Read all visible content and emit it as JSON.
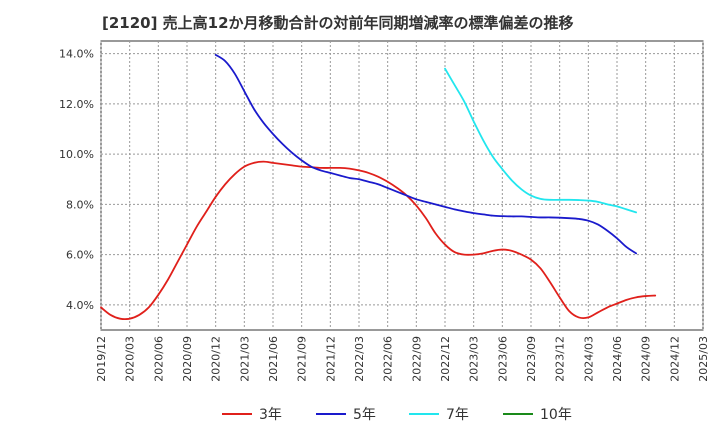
{
  "chart_data": {
    "type": "line",
    "title": "[2120]  売上高12か月移動合計の対前年同期増減率の標準偏差の推移",
    "xlabel": "",
    "ylabel": "",
    "x_ticks": [
      "2019/12",
      "2020/03",
      "2020/06",
      "2020/09",
      "2020/12",
      "2021/03",
      "2021/06",
      "2021/09",
      "2021/12",
      "2022/03",
      "2022/06",
      "2022/09",
      "2022/12",
      "2023/03",
      "2023/06",
      "2023/09",
      "2023/12",
      "2024/03",
      "2024/06",
      "2024/09",
      "2024/12",
      "2025/03"
    ],
    "y_ticks": [
      "4.0%",
      "6.0%",
      "8.0%",
      "10.0%",
      "12.0%",
      "14.0%"
    ],
    "ylim": [
      3.0,
      14.5
    ],
    "grid": true,
    "legend_position": "bottom",
    "series": [
      {
        "name": "3年",
        "color": "#e0201b",
        "points": [
          [
            "2019/12",
            3.9
          ],
          [
            "2020/01",
            3.6
          ],
          [
            "2020/02",
            3.45
          ],
          [
            "2020/03",
            3.45
          ],
          [
            "2020/04",
            3.6
          ],
          [
            "2020/05",
            3.9
          ],
          [
            "2020/06",
            4.4
          ],
          [
            "2020/07",
            5.0
          ],
          [
            "2020/08",
            5.7
          ],
          [
            "2020/09",
            6.4
          ],
          [
            "2020/10",
            7.1
          ],
          [
            "2020/11",
            7.7
          ],
          [
            "2020/12",
            8.3
          ],
          [
            "2021/01",
            8.8
          ],
          [
            "2021/02",
            9.2
          ],
          [
            "2021/03",
            9.5
          ],
          [
            "2021/04",
            9.65
          ],
          [
            "2021/05",
            9.7
          ],
          [
            "2021/06",
            9.65
          ],
          [
            "2021/07",
            9.6
          ],
          [
            "2021/08",
            9.55
          ],
          [
            "2021/09",
            9.5
          ],
          [
            "2021/10",
            9.48
          ],
          [
            "2021/11",
            9.45
          ],
          [
            "2021/12",
            9.45
          ],
          [
            "2022/01",
            9.45
          ],
          [
            "2022/02",
            9.42
          ],
          [
            "2022/03",
            9.35
          ],
          [
            "2022/04",
            9.25
          ],
          [
            "2022/05",
            9.1
          ],
          [
            "2022/06",
            8.9
          ],
          [
            "2022/07",
            8.65
          ],
          [
            "2022/08",
            8.35
          ],
          [
            "2022/09",
            7.95
          ],
          [
            "2022/10",
            7.45
          ],
          [
            "2022/11",
            6.85
          ],
          [
            "2022/12",
            6.4
          ],
          [
            "2023/01",
            6.1
          ],
          [
            "2023/02",
            6.0
          ],
          [
            "2023/03",
            6.0
          ],
          [
            "2023/04",
            6.05
          ],
          [
            "2023/05",
            6.15
          ],
          [
            "2023/06",
            6.2
          ],
          [
            "2023/07",
            6.15
          ],
          [
            "2023/08",
            6.0
          ],
          [
            "2023/09",
            5.8
          ],
          [
            "2023/10",
            5.45
          ],
          [
            "2023/11",
            4.9
          ],
          [
            "2023/12",
            4.3
          ],
          [
            "2024/01",
            3.75
          ],
          [
            "2024/02",
            3.5
          ],
          [
            "2024/03",
            3.5
          ],
          [
            "2024/04",
            3.7
          ],
          [
            "2024/05",
            3.9
          ],
          [
            "2024/06",
            4.05
          ],
          [
            "2024/07",
            4.2
          ],
          [
            "2024/08",
            4.3
          ],
          [
            "2024/09",
            4.35
          ],
          [
            "2024/10",
            4.37
          ]
        ]
      },
      {
        "name": "5年",
        "color": "#1a1acc",
        "points": [
          [
            "2020/12",
            13.95
          ],
          [
            "2021/01",
            13.7
          ],
          [
            "2021/02",
            13.2
          ],
          [
            "2021/03",
            12.5
          ],
          [
            "2021/04",
            11.8
          ],
          [
            "2021/05",
            11.25
          ],
          [
            "2021/06",
            10.8
          ],
          [
            "2021/07",
            10.4
          ],
          [
            "2021/08",
            10.05
          ],
          [
            "2021/09",
            9.75
          ],
          [
            "2021/10",
            9.5
          ],
          [
            "2021/11",
            9.35
          ],
          [
            "2021/12",
            9.25
          ],
          [
            "2022/01",
            9.15
          ],
          [
            "2022/02",
            9.05
          ],
          [
            "2022/03",
            9.0
          ],
          [
            "2022/04",
            8.9
          ],
          [
            "2022/05",
            8.8
          ],
          [
            "2022/06",
            8.65
          ],
          [
            "2022/07",
            8.5
          ],
          [
            "2022/08",
            8.35
          ],
          [
            "2022/09",
            8.2
          ],
          [
            "2022/10",
            8.1
          ],
          [
            "2022/11",
            8.0
          ],
          [
            "2022/12",
            7.9
          ],
          [
            "2023/01",
            7.8
          ],
          [
            "2023/02",
            7.72
          ],
          [
            "2023/03",
            7.65
          ],
          [
            "2023/04",
            7.6
          ],
          [
            "2023/05",
            7.55
          ],
          [
            "2023/06",
            7.53
          ],
          [
            "2023/07",
            7.52
          ],
          [
            "2023/08",
            7.52
          ],
          [
            "2023/09",
            7.5
          ],
          [
            "2023/10",
            7.48
          ],
          [
            "2023/11",
            7.48
          ],
          [
            "2023/12",
            7.47
          ],
          [
            "2024/01",
            7.45
          ],
          [
            "2024/02",
            7.42
          ],
          [
            "2024/03",
            7.35
          ],
          [
            "2024/04",
            7.2
          ],
          [
            "2024/05",
            6.95
          ],
          [
            "2024/06",
            6.65
          ],
          [
            "2024/07",
            6.3
          ],
          [
            "2024/08",
            6.05
          ]
        ]
      },
      {
        "name": "7年",
        "color": "#22e6ee",
        "points": [
          [
            "2022/12",
            13.4
          ],
          [
            "2023/01",
            12.75
          ],
          [
            "2023/02",
            12.1
          ],
          [
            "2023/03",
            11.3
          ],
          [
            "2023/04",
            10.55
          ],
          [
            "2023/05",
            9.9
          ],
          [
            "2023/06",
            9.4
          ],
          [
            "2023/07",
            8.95
          ],
          [
            "2023/08",
            8.6
          ],
          [
            "2023/09",
            8.35
          ],
          [
            "2023/10",
            8.22
          ],
          [
            "2023/11",
            8.18
          ],
          [
            "2023/12",
            8.18
          ],
          [
            "2024/01",
            8.18
          ],
          [
            "2024/02",
            8.17
          ],
          [
            "2024/03",
            8.15
          ],
          [
            "2024/04",
            8.1
          ],
          [
            "2024/05",
            8.0
          ],
          [
            "2024/06",
            7.92
          ],
          [
            "2024/07",
            7.8
          ],
          [
            "2024/08",
            7.68
          ]
        ]
      },
      {
        "name": "10年",
        "color": "#1a8a1a",
        "points": []
      }
    ]
  }
}
